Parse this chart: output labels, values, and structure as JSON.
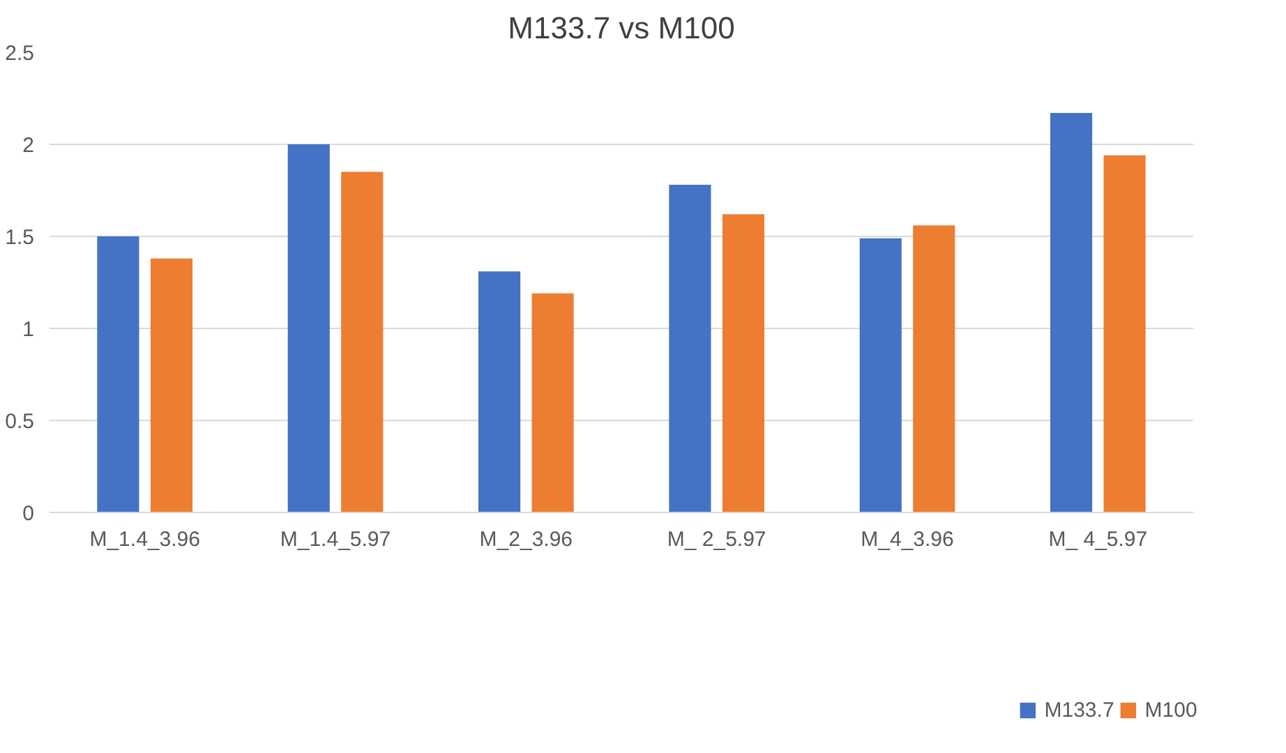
{
  "chart_data": {
    "type": "bar",
    "title": "M133.7 vs M100",
    "categories": [
      "M_1.4_3.96",
      "M_1.4_5.97",
      "M_2_3.96",
      "M_ 2_5.97",
      "M_4_3.96",
      "M_ 4_5.97"
    ],
    "series": [
      {
        "name": "M133.7",
        "color": "#4472c4",
        "values": [
          1.5,
          2.0,
          1.31,
          1.78,
          1.49,
          2.17
        ]
      },
      {
        "name": "M100",
        "color": "#ed7d31",
        "values": [
          1.38,
          1.85,
          1.19,
          1.62,
          1.56,
          1.94
        ]
      }
    ],
    "ylim": [
      0,
      2.5
    ],
    "yticks": [
      0,
      0.5,
      1,
      1.5,
      2,
      2.5
    ],
    "grid": "y",
    "legend": "bottom"
  }
}
